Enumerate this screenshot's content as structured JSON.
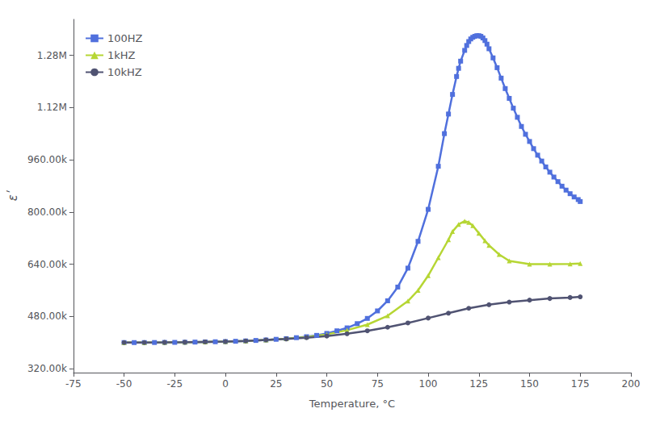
{
  "chart_data": {
    "type": "line",
    "xlabel": "Temperature, °C",
    "ylabel": "εʹ",
    "xlim": [
      -75,
      200
    ],
    "ylim": [
      308000,
      1390000
    ],
    "xticks": [
      -75,
      -50,
      -25,
      0,
      25,
      50,
      75,
      100,
      125,
      150,
      175,
      200
    ],
    "yticks": [
      {
        "value": 320000,
        "label": "320.00k"
      },
      {
        "value": 480000,
        "label": "480.00k"
      },
      {
        "value": 640000,
        "label": "640.00k"
      },
      {
        "value": 800000,
        "label": "800.00k"
      },
      {
        "value": 960000,
        "label": "960.00k"
      },
      {
        "value": 1120000,
        "label": "1.12M"
      },
      {
        "value": 1280000,
        "label": "1.28M"
      }
    ],
    "grid": false,
    "legend": "upper left",
    "series": [
      {
        "name": "100HZ",
        "marker": "square",
        "x": [
          -50,
          -45,
          -40,
          -35,
          -30,
          -25,
          -20,
          -15,
          -10,
          -5,
          0,
          5,
          10,
          15,
          20,
          25,
          30,
          35,
          40,
          45,
          50,
          55,
          60,
          65,
          70,
          75,
          80,
          85,
          90,
          95,
          100,
          105,
          108,
          110,
          112,
          114,
          115,
          116,
          118,
          119,
          120,
          121,
          122,
          123,
          124,
          125,
          126,
          127,
          128,
          129,
          130,
          132,
          134,
          136,
          138,
          140,
          142,
          144,
          146,
          148,
          150,
          152,
          154,
          156,
          158,
          160,
          162,
          164,
          166,
          168,
          170,
          172,
          174,
          175
        ],
        "values": [
          400000,
          400000,
          400000,
          400200,
          400400,
          400600,
          401000,
          401500,
          402000,
          402500,
          403000,
          404000,
          405000,
          406500,
          408000,
          410000,
          412000,
          415000,
          418000,
          422000,
          428000,
          436000,
          445000,
          458000,
          474000,
          497000,
          528000,
          570000,
          628000,
          710000,
          808000,
          940000,
          1040000,
          1100000,
          1160000,
          1215000,
          1240000,
          1262000,
          1295000,
          1310000,
          1322000,
          1330000,
          1335000,
          1338000,
          1340000,
          1340000,
          1338000,
          1333000,
          1325000,
          1314000,
          1300000,
          1272000,
          1242000,
          1210000,
          1178000,
          1148000,
          1118000,
          1090000,
          1062000,
          1038000,
          1016000,
          994000,
          974000,
          956000,
          938000,
          922000,
          907000,
          893000,
          879000,
          867000,
          856000,
          846000,
          838000,
          832000
        ]
      },
      {
        "name": "1kHZ",
        "marker": "triangle",
        "x": [
          -50,
          -40,
          -30,
          -20,
          -10,
          0,
          10,
          20,
          30,
          40,
          50,
          60,
          70,
          80,
          90,
          95,
          100,
          105,
          110,
          112,
          115,
          118,
          120,
          122,
          125,
          128,
          130,
          135,
          140,
          150,
          160,
          170,
          175
        ],
        "values": [
          400000,
          400000,
          400400,
          401000,
          402000,
          403000,
          405000,
          408000,
          412000,
          417000,
          425000,
          438000,
          455000,
          482000,
          527000,
          560000,
          605000,
          660000,
          715000,
          740000,
          762000,
          772000,
          768000,
          758000,
          735000,
          712000,
          698000,
          670000,
          650000,
          640000,
          640000,
          641000,
          642000
        ]
      },
      {
        "name": "10kHZ",
        "marker": "circle",
        "x": [
          -50,
          -40,
          -30,
          -20,
          -10,
          0,
          10,
          20,
          30,
          40,
          50,
          60,
          70,
          80,
          90,
          100,
          110,
          120,
          130,
          140,
          150,
          160,
          170,
          175
        ],
        "values": [
          400000,
          400000,
          400400,
          401000,
          402000,
          403000,
          405000,
          408000,
          411000,
          415000,
          420000,
          427000,
          436000,
          447000,
          460000,
          475000,
          490000,
          505000,
          516000,
          524000,
          530000,
          535000,
          538000,
          540000
        ]
      }
    ]
  }
}
